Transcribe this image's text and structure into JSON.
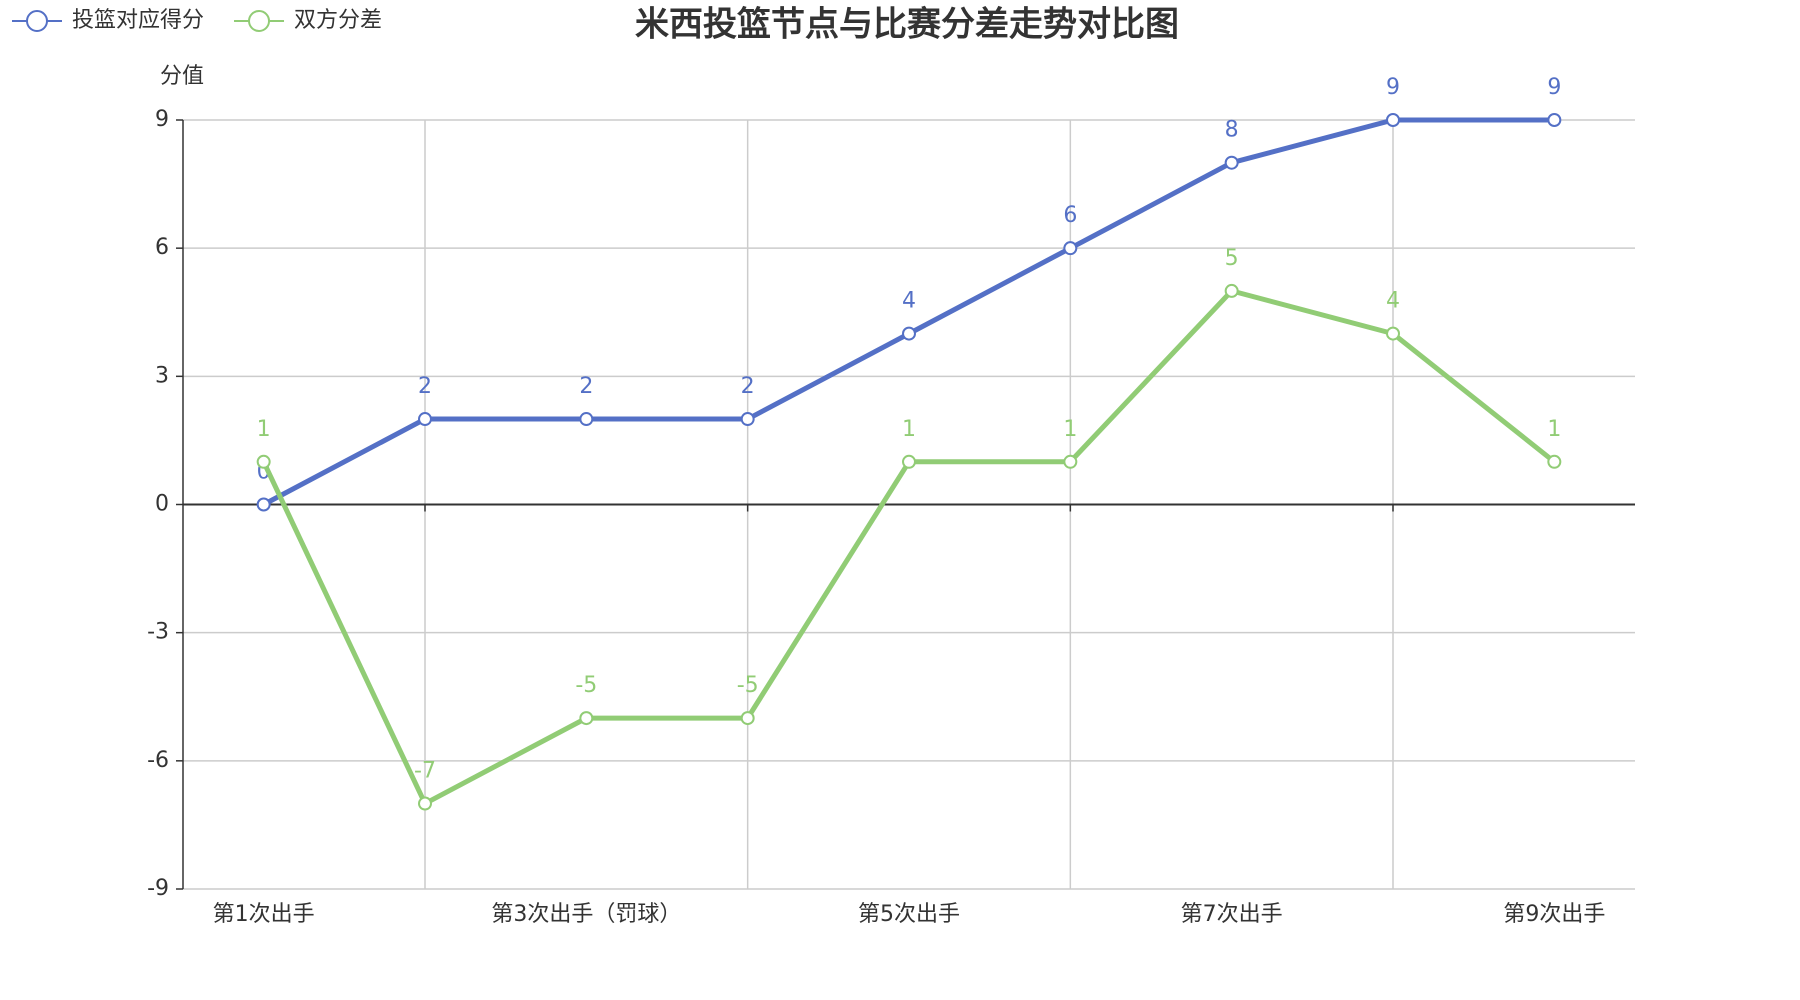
{
  "chart_data": {
    "type": "line",
    "title": "米西投篮节点与比赛分差走势对比图",
    "y_label": "分值",
    "categories": [
      "第1次出手",
      null,
      "第3次出手（罚球）",
      null,
      "第5次出手",
      null,
      "第7次出手",
      null,
      "第9次出手"
    ],
    "series": [
      {
        "name": "投篮对应得分",
        "color": "#5470c6",
        "values": [
          0,
          2,
          2,
          2,
          4,
          6,
          8,
          9,
          9
        ]
      },
      {
        "name": "双方分差",
        "color": "#91cc75",
        "values": [
          1,
          -7,
          -5,
          -5,
          1,
          1,
          5,
          4,
          1
        ]
      }
    ],
    "ylim": [
      -9,
      9
    ],
    "yticks": [
      -9,
      -6,
      -3,
      0,
      3,
      6,
      9
    ],
    "grid": true,
    "legend": "top-left"
  }
}
